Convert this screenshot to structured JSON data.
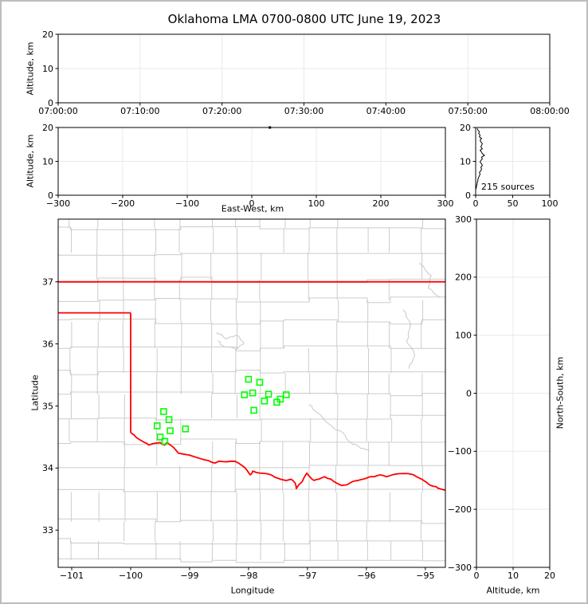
{
  "title": "Oklahoma LMA 0700-0800 UTC June 19, 2023",
  "style": {
    "station_color": "#00ff00",
    "state_border_color": "#ff0000",
    "county_color": "#cccccc",
    "river_color": "#c8c8c8",
    "grid_color": "#e9e9e9",
    "trace_color": "#000000",
    "spine_color": "#000000"
  },
  "chart_data": [
    {
      "id": "time_height_panel",
      "type": "scatter",
      "xlabel": "",
      "ylabel": "Altitude, km",
      "x_tick_labels": [
        "07:00:00",
        "07:10:00",
        "07:20:00",
        "07:30:00",
        "07:40:00",
        "07:50:00",
        "08:00:00"
      ],
      "ylim": [
        0,
        20
      ],
      "y_ticks": [
        0,
        10,
        20
      ],
      "points": []
    },
    {
      "id": "ew_height_panel",
      "type": "scatter",
      "xlabel": "East-West, km",
      "ylabel": "Altitude, km",
      "xlim": [
        -300,
        300
      ],
      "x_ticks": [
        -300,
        -200,
        -100,
        0,
        100,
        200,
        300
      ],
      "ylim": [
        0,
        20
      ],
      "y_ticks": [
        0,
        10,
        20
      ],
      "points": [
        [
          28,
          20
        ]
      ]
    },
    {
      "id": "height_histogram_panel",
      "type": "line",
      "annotation": "215 sources",
      "xlim": [
        0,
        100
      ],
      "x_ticks": [
        0,
        50,
        100
      ],
      "ylim": [
        0,
        20
      ],
      "y_ticks": [
        0,
        10,
        20
      ],
      "alt_bin_km": 0.5,
      "counts": [
        0,
        0,
        0,
        0,
        1,
        1,
        2,
        2,
        3,
        3,
        4,
        5,
        6,
        5,
        7,
        8,
        7,
        9,
        8,
        6,
        7,
        9,
        8,
        12,
        9,
        8,
        6,
        9,
        7,
        8,
        9,
        7,
        6,
        8,
        5,
        6,
        4,
        5,
        3,
        2
      ]
    },
    {
      "id": "plan_view_panel",
      "type": "scatter",
      "xlabel": "Longitude",
      "ylabel": "Latitude",
      "xlim": [
        -101.23,
        -94.66
      ],
      "x_ticks": [
        -101,
        -100,
        -99,
        -98,
        -97,
        -96,
        -95
      ],
      "ylim": [
        32.4,
        38.01
      ],
      "y_ticks": [
        33,
        34,
        35,
        36,
        37
      ],
      "stations": [
        [
          -98.0,
          35.43
        ],
        [
          -97.81,
          35.38
        ],
        [
          -98.07,
          35.18
        ],
        [
          -97.93,
          35.21
        ],
        [
          -97.66,
          35.19
        ],
        [
          -97.36,
          35.18
        ],
        [
          -97.46,
          35.11
        ],
        [
          -97.73,
          35.08
        ],
        [
          -97.52,
          35.06
        ],
        [
          -97.91,
          34.93
        ],
        [
          -99.44,
          34.91
        ],
        [
          -99.35,
          34.78
        ],
        [
          -99.55,
          34.68
        ],
        [
          -99.33,
          34.6
        ],
        [
          -99.07,
          34.63
        ],
        [
          -99.5,
          34.5
        ],
        [
          -99.42,
          34.43
        ]
      ],
      "state_border": {
        "north": [
          [
            -101.23,
            37
          ],
          [
            -94.66,
            37
          ]
        ],
        "panhandle_south": [
          [
            -101.23,
            36.5
          ],
          [
            -100,
            36.5
          ]
        ],
        "west_100w": [
          [
            -100,
            36.5
          ],
          [
            -100,
            34.57
          ]
        ],
        "red_river": [
          [
            -100.0,
            34.57
          ],
          [
            -99.9,
            34.49
          ],
          [
            -99.78,
            34.42
          ],
          [
            -99.69,
            34.37
          ],
          [
            -99.58,
            34.4
          ],
          [
            -99.5,
            34.41
          ],
          [
            -99.42,
            34.37
          ],
          [
            -99.38,
            34.41
          ],
          [
            -99.27,
            34.33
          ],
          [
            -99.19,
            34.24
          ],
          [
            -99.01,
            34.21
          ],
          [
            -98.81,
            34.15
          ],
          [
            -98.68,
            34.12
          ],
          [
            -98.57,
            34.08
          ],
          [
            -98.5,
            34.11
          ],
          [
            -98.38,
            34.1
          ],
          [
            -98.23,
            34.11
          ],
          [
            -98.11,
            34.04
          ],
          [
            -98.03,
            33.97
          ],
          [
            -97.97,
            33.89
          ],
          [
            -97.93,
            33.95
          ],
          [
            -97.82,
            33.92
          ],
          [
            -97.7,
            33.91
          ],
          [
            -97.62,
            33.89
          ],
          [
            -97.55,
            33.85
          ],
          [
            -97.46,
            33.82
          ],
          [
            -97.36,
            33.8
          ],
          [
            -97.28,
            33.82
          ],
          [
            -97.21,
            33.76
          ],
          [
            -97.19,
            33.67
          ],
          [
            -97.09,
            33.78
          ],
          [
            -97.01,
            33.92
          ],
          [
            -96.96,
            33.86
          ],
          [
            -96.89,
            33.8
          ],
          [
            -96.81,
            33.82
          ],
          [
            -96.71,
            33.86
          ],
          [
            -96.6,
            33.82
          ],
          [
            -96.51,
            33.76
          ],
          [
            -96.42,
            33.72
          ],
          [
            -96.33,
            33.73
          ],
          [
            -96.24,
            33.78
          ],
          [
            -96.14,
            33.8
          ],
          [
            -96.06,
            33.82
          ],
          [
            -95.97,
            33.85
          ],
          [
            -95.87,
            33.86
          ],
          [
            -95.77,
            33.89
          ],
          [
            -95.66,
            33.86
          ],
          [
            -95.56,
            33.89
          ],
          [
            -95.43,
            33.91
          ],
          [
            -95.29,
            33.91
          ],
          [
            -95.2,
            33.89
          ],
          [
            -95.06,
            33.82
          ],
          [
            -94.93,
            33.73
          ],
          [
            -94.82,
            33.7
          ],
          [
            -94.73,
            33.66
          ],
          [
            -94.6,
            33.63
          ]
        ]
      },
      "rivers": [
        [
          [
            -98.55,
            36.18
          ],
          [
            -98.38,
            36.08
          ],
          [
            -98.22,
            36.14
          ],
          [
            -98.08,
            36.02
          ],
          [
            -98.18,
            35.92
          ],
          [
            -98.4,
            35.95
          ],
          [
            -98.52,
            36.05
          ]
        ],
        [
          [
            -96.98,
            35.02
          ],
          [
            -96.82,
            34.88
          ],
          [
            -96.65,
            34.72
          ],
          [
            -96.45,
            34.6
          ],
          [
            -96.28,
            34.42
          ],
          [
            -96.1,
            34.32
          ],
          [
            -95.95,
            34.28
          ]
        ],
        [
          [
            -95.38,
            36.55
          ],
          [
            -95.25,
            36.3
          ],
          [
            -95.32,
            36.05
          ],
          [
            -95.18,
            35.82
          ],
          [
            -95.28,
            35.6
          ]
        ],
        [
          [
            -95.1,
            37.3
          ],
          [
            -94.9,
            37.1
          ],
          [
            -94.95,
            36.9
          ],
          [
            -94.75,
            36.75
          ]
        ]
      ],
      "county_mesh": {
        "seed": 7,
        "lat_step_min": 0.3,
        "lat_step_max": 0.48,
        "lon_step_min": 0.38,
        "lon_step_max": 0.55,
        "jog_amp": 0.1,
        "vertical_keep": 0.85,
        "offset_amp": 0.05
      }
    },
    {
      "id": "ns_height_panel",
      "type": "scatter",
      "xlabel": "Altitude, km",
      "ylabel": "North-South, km",
      "xlim": [
        0,
        20
      ],
      "x_ticks": [
        0,
        10,
        20
      ],
      "ylim": [
        -300,
        300
      ],
      "y_ticks": [
        -300,
        -200,
        -100,
        0,
        100,
        200,
        300
      ],
      "points": []
    }
  ]
}
